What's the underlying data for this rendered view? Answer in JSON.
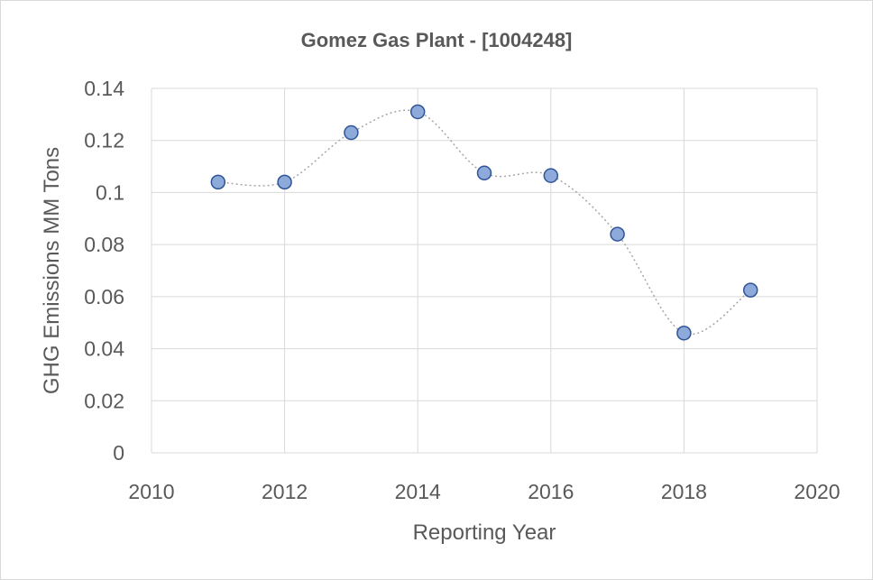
{
  "chart_data": {
    "type": "scatter",
    "title": "Gomez Gas Plant - [1004248]",
    "xlabel": "Reporting Year",
    "ylabel": "GHG Emissions MM Tons",
    "xlim": [
      2010,
      2020
    ],
    "ylim": [
      0,
      0.14
    ],
    "x_ticks": [
      "2010",
      "2012",
      "2014",
      "2016",
      "2018",
      "2020"
    ],
    "y_ticks": [
      "0",
      "0.02",
      "0.04",
      "0.06",
      "0.08",
      "0.1",
      "0.12",
      "0.14"
    ],
    "grid": true,
    "smooth_line": true,
    "series": [
      {
        "color": "#8eaadb",
        "x": [
          2011,
          2012,
          2013,
          2014,
          2015,
          2016,
          2017,
          2018,
          2019
        ],
        "y": [
          0.104,
          0.104,
          0.123,
          0.131,
          0.1075,
          0.1065,
          0.084,
          0.046,
          0.0625
        ]
      }
    ]
  }
}
